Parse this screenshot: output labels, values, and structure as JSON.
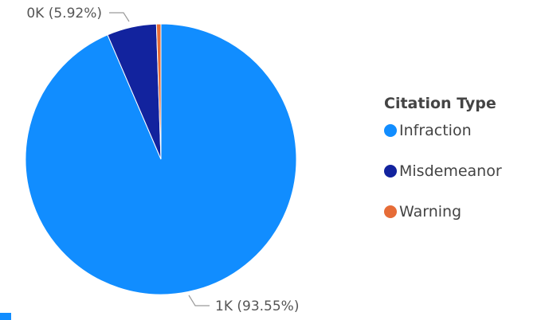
{
  "chart_data": {
    "type": "pie",
    "legend_title": "Citation Type",
    "legend_position": "right",
    "slices": [
      {
        "name": "Infraction",
        "percent": 93.55,
        "label": "1K (93.55%)",
        "color": "#118DFF"
      },
      {
        "name": "Misdemeanor",
        "percent": 5.92,
        "label": "0K (5.92%)",
        "color": "#12239E"
      },
      {
        "name": "Warning",
        "percent": 0.53,
        "label": "",
        "color": "#E66C37"
      }
    ]
  },
  "accent_color": "#118DFF"
}
